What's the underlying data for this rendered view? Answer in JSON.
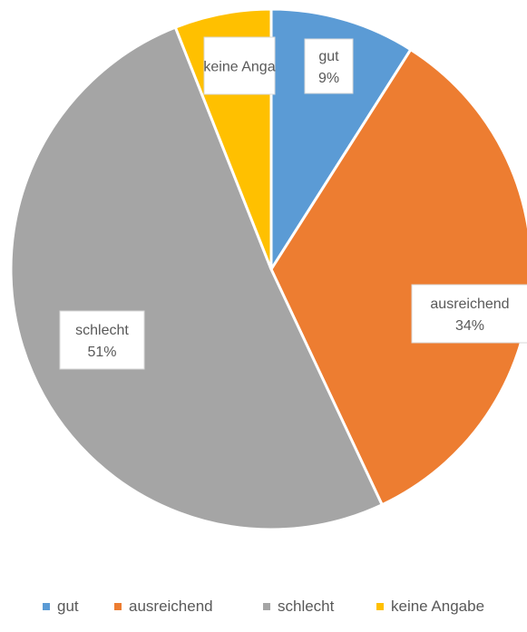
{
  "chart_data": {
    "type": "pie",
    "categories": [
      "gut",
      "ausreichend",
      "schlecht",
      "keine Angabe"
    ],
    "values": [
      9,
      34,
      51,
      6
    ],
    "colors": [
      "#5B9BD5",
      "#ED7D31",
      "#A5A5A5",
      "#FFC000"
    ],
    "data_labels": [
      {
        "name": "gut",
        "value": "9%"
      },
      {
        "name": "ausreichend",
        "value": "34%"
      },
      {
        "name": "schlecht",
        "value": "51%"
      },
      {
        "name": "keine Anga",
        "value": ""
      }
    ],
    "legend_position": "bottom"
  }
}
